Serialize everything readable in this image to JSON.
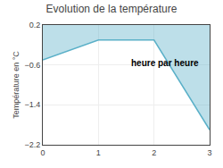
{
  "chart_data": {
    "type": "area",
    "title": "Evolution de la température",
    "ylabel": "Température en °C",
    "annotations": [
      "heure par heure"
    ],
    "x": [
      0,
      1,
      2,
      3
    ],
    "values": [
      -0.5,
      -0.1,
      -0.1,
      -1.9
    ],
    "color": "#5ab0c8",
    "xlim": [
      0,
      3
    ],
    "xticks": [
      0,
      1,
      2,
      3
    ],
    "ylim": [
      -2.2,
      0.2
    ],
    "yticks": [
      0.2,
      -0.6,
      -1.4,
      -2.2
    ],
    "grid": true
  }
}
